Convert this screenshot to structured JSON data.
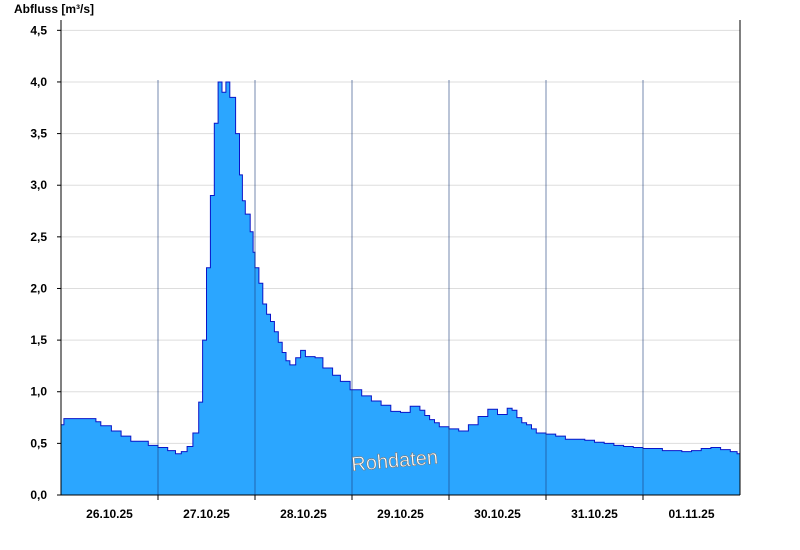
{
  "chart_data": {
    "type": "area",
    "title": "",
    "ylabel": "Abfluss [m³/s]",
    "xlabel": "",
    "ylim": [
      0,
      4.6
    ],
    "yticks": [
      "0,0",
      "0,5",
      "1,0",
      "1,5",
      "2,0",
      "2,5",
      "3,0",
      "3,5",
      "4,0",
      "4,5"
    ],
    "xlim": [
      0,
      7.0
    ],
    "xtick_labels": [
      "26.10.25",
      "27.10.25",
      "28.10.25",
      "29.10.25",
      "30.10.25",
      "31.10.25",
      "01.11.25"
    ],
    "grid": true,
    "watermark": "Rohdaten",
    "colors": {
      "fill": "#2ba6ff",
      "line": "#0a14c8",
      "axis": "#000000",
      "grid": "#dddddd",
      "day_line": "#1a3a7a"
    },
    "series": [
      {
        "name": "",
        "x": [
          0.0,
          0.03,
          0.31,
          0.36,
          0.41,
          0.52,
          0.62,
          0.72,
          0.9,
          1.0,
          1.1,
          1.18,
          1.24,
          1.3,
          1.36,
          1.42,
          1.46,
          1.5,
          1.54,
          1.58,
          1.62,
          1.66,
          1.7,
          1.74,
          1.8,
          1.84,
          1.87,
          1.9,
          1.95,
          1.98,
          2.0,
          2.04,
          2.08,
          2.12,
          2.16,
          2.2,
          2.24,
          2.28,
          2.32,
          2.36,
          2.42,
          2.47,
          2.52,
          2.57,
          2.62,
          2.7,
          2.8,
          2.88,
          2.98,
          3.1,
          3.2,
          3.3,
          3.4,
          3.5,
          3.6,
          3.7,
          3.75,
          3.8,
          3.85,
          3.9,
          4.0,
          4.1,
          4.2,
          4.3,
          4.4,
          4.5,
          4.55,
          4.6,
          4.65,
          4.7,
          4.75,
          4.8,
          4.85,
          4.9,
          5.0,
          5.1,
          5.2,
          5.3,
          5.4,
          5.5,
          5.6,
          5.7,
          5.8,
          5.9,
          6.0,
          6.2,
          6.4,
          6.5,
          6.6,
          6.7,
          6.8,
          6.9,
          6.97,
          7.0
        ],
        "y": [
          0.68,
          0.74,
          0.74,
          0.71,
          0.67,
          0.62,
          0.57,
          0.52,
          0.48,
          0.46,
          0.43,
          0.4,
          0.42,
          0.47,
          0.6,
          0.9,
          1.5,
          2.2,
          2.9,
          3.6,
          4.0,
          3.9,
          4.0,
          3.85,
          3.5,
          3.1,
          2.85,
          2.72,
          2.55,
          2.35,
          2.2,
          2.05,
          1.85,
          1.75,
          1.68,
          1.58,
          1.48,
          1.38,
          1.3,
          1.26,
          1.33,
          1.4,
          1.34,
          1.34,
          1.33,
          1.23,
          1.16,
          1.1,
          1.02,
          0.96,
          0.91,
          0.87,
          0.81,
          0.8,
          0.86,
          0.82,
          0.77,
          0.73,
          0.7,
          0.66,
          0.64,
          0.62,
          0.68,
          0.76,
          0.83,
          0.78,
          0.78,
          0.84,
          0.82,
          0.75,
          0.7,
          0.68,
          0.64,
          0.6,
          0.59,
          0.57,
          0.54,
          0.54,
          0.53,
          0.51,
          0.5,
          0.48,
          0.47,
          0.46,
          0.45,
          0.43,
          0.42,
          0.43,
          0.45,
          0.46,
          0.44,
          0.42,
          0.4,
          0.36
        ]
      }
    ]
  }
}
